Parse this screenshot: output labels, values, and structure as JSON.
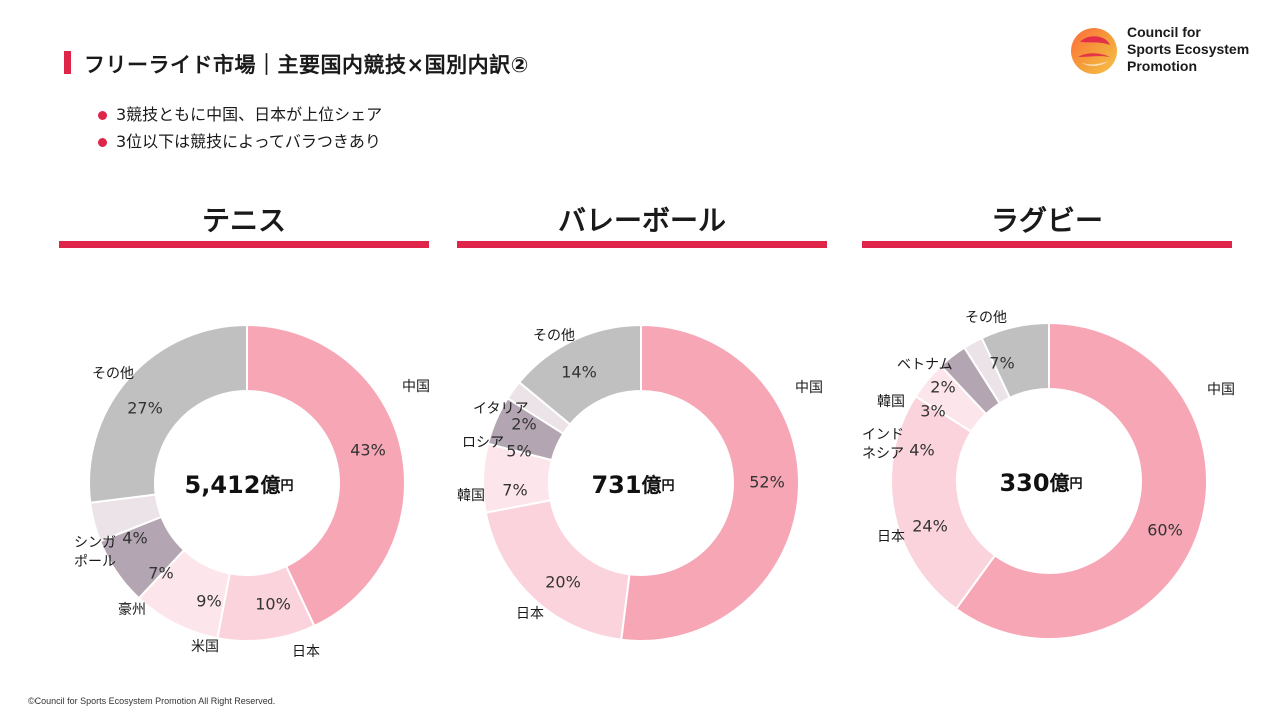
{
  "page": {
    "title": "フリーライド市場｜主要国内競技×国別内訳②",
    "bullets": [
      "3競技ともに中国、日本が上位シェア",
      "3位以下は競技によってバラつきあり"
    ],
    "footer": "©Council for Sports Ecosystem Promotion All Right Reserved.",
    "accent_color": "#e0254b"
  },
  "logo": {
    "lines": [
      "Council for",
      "Sports Ecosystem",
      "Promotion"
    ]
  },
  "chart_data": [
    {
      "type": "pie",
      "title": "テニス",
      "center_value": "5,412",
      "center_unit": "億円",
      "slices": [
        {
          "label": "中国",
          "value": 43,
          "value_label": "43%",
          "color": "#f7a6b5"
        },
        {
          "label": "日本",
          "value": 10,
          "value_label": "10%",
          "color": "#fbd3dc"
        },
        {
          "label": "米国",
          "value": 9,
          "value_label": "9%",
          "color": "#fde6eb"
        },
        {
          "label": "豪州",
          "value": 7,
          "value_label": "7%",
          "color": "#b3a5b1"
        },
        {
          "label": "シンガポール",
          "value": 4,
          "value_label": "4%",
          "color": "#ebe3e7"
        },
        {
          "label": "その他",
          "value": 27,
          "value_label": "27%",
          "color": "#c0c0c0"
        }
      ]
    },
    {
      "type": "pie",
      "title": "バレーボール",
      "center_value": "731",
      "center_unit": "億円",
      "slices": [
        {
          "label": "中国",
          "value": 52,
          "value_label": "52%",
          "color": "#f7a6b5"
        },
        {
          "label": "日本",
          "value": 20,
          "value_label": "20%",
          "color": "#fbd3dc"
        },
        {
          "label": "韓国",
          "value": 7,
          "value_label": "7%",
          "color": "#fde6eb"
        },
        {
          "label": "ロシア",
          "value": 5,
          "value_label": "5%",
          "color": "#b3a5b1"
        },
        {
          "label": "イタリア",
          "value": 2,
          "value_label": "2%",
          "color": "#ebe3e7"
        },
        {
          "label": "その他",
          "value": 14,
          "value_label": "14%",
          "color": "#c0c0c0"
        }
      ]
    },
    {
      "type": "pie",
      "title": "ラグビー",
      "center_value": "330",
      "center_unit": "億円",
      "slices": [
        {
          "label": "中国",
          "value": 60,
          "value_label": "60%",
          "color": "#f7a6b5"
        },
        {
          "label": "日本",
          "value": 24,
          "value_label": "24%",
          "color": "#fbd3dc"
        },
        {
          "label": "インドネシア",
          "value": 4,
          "value_label": "4%",
          "color": "#fde6eb"
        },
        {
          "label": "韓国",
          "value": 3,
          "value_label": "3%",
          "color": "#b3a5b1"
        },
        {
          "label": "ベトナム",
          "value": 2,
          "value_label": "2%",
          "color": "#ebe3e7"
        },
        {
          "label": "その他",
          "value": 7,
          "value_label": "7%",
          "color": "#c0c0c0"
        }
      ]
    }
  ]
}
